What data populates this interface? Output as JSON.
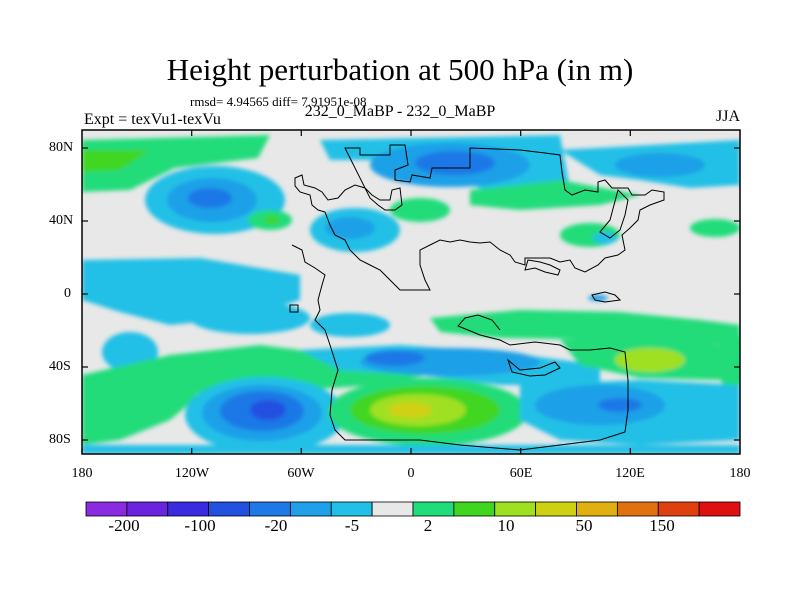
{
  "header": {
    "title": "Height perturbation at 500 hPa (in m)",
    "stats": "rmsd= 4.94565 diff= 7.91951e-08",
    "experiment": "Expt = texVu1-texVu",
    "case": "232_0_MaBP - 232_0_MaBP",
    "season": "JJA"
  },
  "axes": {
    "lat_labels": [
      "80N",
      "40N",
      "0",
      "40S",
      "80S"
    ],
    "lon_labels": [
      "180",
      "120W",
      "60W",
      "0",
      "60E",
      "120E",
      "180"
    ]
  },
  "colorbar": {
    "colors": [
      "#8a2be2",
      "#6a24e0",
      "#3a2ae0",
      "#2250e0",
      "#1e78e6",
      "#1fa0e8",
      "#22c0e6",
      "#e8e8e8",
      "#20dc7a",
      "#40d620",
      "#a0e020",
      "#d0d012",
      "#e0b010",
      "#e07010",
      "#e04010",
      "#e01010"
    ],
    "labels": [
      "-200",
      "-100",
      "-20",
      "-5",
      "2",
      "10",
      "50",
      "150"
    ]
  }
}
